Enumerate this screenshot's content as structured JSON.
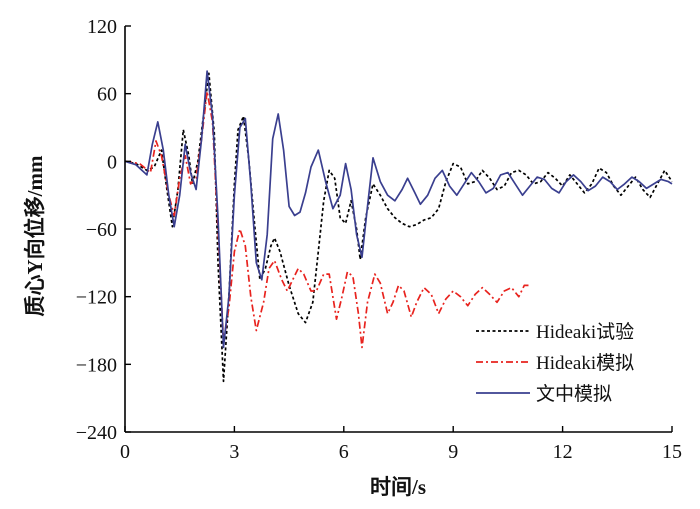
{
  "chart_data": {
    "type": "line",
    "xlabel": "时间/s",
    "ylabel": "质心Y向位移/mm",
    "xlim": [
      0,
      15
    ],
    "ylim": [
      -240,
      120
    ],
    "x_ticks": [
      "0",
      "3",
      "6",
      "9",
      "12",
      "15"
    ],
    "y_ticks": [
      "120",
      "60",
      "0",
      "−60",
      "−120",
      "−180",
      "−240"
    ],
    "grid": false,
    "legend_position": "bottom-right",
    "series": [
      {
        "name": "Hideaki试验",
        "style": "dotted",
        "color": "#000000",
        "points": [
          [
            0,
            0
          ],
          [
            0.3,
            -2
          ],
          [
            0.6,
            -8
          ],
          [
            0.8,
            -5
          ],
          [
            1.0,
            10
          ],
          [
            1.15,
            -25
          ],
          [
            1.3,
            -58
          ],
          [
            1.45,
            -25
          ],
          [
            1.6,
            28
          ],
          [
            1.75,
            5
          ],
          [
            1.85,
            -20
          ],
          [
            2.0,
            0
          ],
          [
            2.15,
            40
          ],
          [
            2.3,
            78
          ],
          [
            2.45,
            25
          ],
          [
            2.55,
            -90
          ],
          [
            2.7,
            -195
          ],
          [
            2.85,
            -120
          ],
          [
            3.0,
            -20
          ],
          [
            3.1,
            28
          ],
          [
            3.25,
            40
          ],
          [
            3.4,
            0
          ],
          [
            3.55,
            -55
          ],
          [
            3.7,
            -105
          ],
          [
            3.85,
            -95
          ],
          [
            4.0,
            -75
          ],
          [
            4.1,
            -68
          ],
          [
            4.25,
            -80
          ],
          [
            4.5,
            -110
          ],
          [
            4.75,
            -135
          ],
          [
            4.95,
            -143
          ],
          [
            5.15,
            -125
          ],
          [
            5.3,
            -80
          ],
          [
            5.45,
            -35
          ],
          [
            5.6,
            -8
          ],
          [
            5.75,
            -15
          ],
          [
            5.9,
            -50
          ],
          [
            6.05,
            -55
          ],
          [
            6.2,
            -35
          ],
          [
            6.35,
            -60
          ],
          [
            6.45,
            -87
          ],
          [
            6.6,
            -50
          ],
          [
            6.8,
            -20
          ],
          [
            7.0,
            -30
          ],
          [
            7.2,
            -42
          ],
          [
            7.4,
            -50
          ],
          [
            7.6,
            -55
          ],
          [
            7.8,
            -58
          ],
          [
            8.0,
            -56
          ],
          [
            8.2,
            -52
          ],
          [
            8.4,
            -50
          ],
          [
            8.6,
            -42
          ],
          [
            8.8,
            -18
          ],
          [
            9.0,
            -2
          ],
          [
            9.2,
            -5
          ],
          [
            9.4,
            -20
          ],
          [
            9.6,
            -18
          ],
          [
            9.8,
            -8
          ],
          [
            10.0,
            -15
          ],
          [
            10.2,
            -25
          ],
          [
            10.4,
            -22
          ],
          [
            10.6,
            -10
          ],
          [
            10.8,
            -8
          ],
          [
            11.0,
            -12
          ],
          [
            11.2,
            -20
          ],
          [
            11.4,
            -18
          ],
          [
            11.6,
            -10
          ],
          [
            11.8,
            -15
          ],
          [
            12.0,
            -22
          ],
          [
            12.2,
            -12
          ],
          [
            12.4,
            -20
          ],
          [
            12.6,
            -28
          ],
          [
            12.8,
            -20
          ],
          [
            13.0,
            -6
          ],
          [
            13.2,
            -10
          ],
          [
            13.4,
            -22
          ],
          [
            13.6,
            -30
          ],
          [
            13.8,
            -22
          ],
          [
            14.0,
            -14
          ],
          [
            14.2,
            -25
          ],
          [
            14.4,
            -32
          ],
          [
            14.6,
            -20
          ],
          [
            14.8,
            -8
          ],
          [
            15.0,
            -18
          ]
        ]
      },
      {
        "name": "Hideaki模拟",
        "style": "dash-dot",
        "color": "#e8231e",
        "points": [
          [
            0,
            0
          ],
          [
            0.4,
            -2
          ],
          [
            0.7,
            -10
          ],
          [
            0.85,
            18
          ],
          [
            1.0,
            5
          ],
          [
            1.2,
            -30
          ],
          [
            1.35,
            -48
          ],
          [
            1.5,
            -15
          ],
          [
            1.65,
            5
          ],
          [
            1.8,
            -20
          ],
          [
            1.95,
            -15
          ],
          [
            2.1,
            20
          ],
          [
            2.25,
            62
          ],
          [
            2.4,
            35
          ],
          [
            2.55,
            -60
          ],
          [
            2.7,
            -160
          ],
          [
            2.85,
            -130
          ],
          [
            3.0,
            -80
          ],
          [
            3.15,
            -60
          ],
          [
            3.3,
            -75
          ],
          [
            3.45,
            -120
          ],
          [
            3.6,
            -150
          ],
          [
            3.8,
            -125
          ],
          [
            3.95,
            -95
          ],
          [
            4.1,
            -88
          ],
          [
            4.3,
            -105
          ],
          [
            4.45,
            -115
          ],
          [
            4.6,
            -105
          ],
          [
            4.75,
            -95
          ],
          [
            4.9,
            -100
          ],
          [
            5.1,
            -115
          ],
          [
            5.25,
            -115
          ],
          [
            5.45,
            -100
          ],
          [
            5.6,
            -100
          ],
          [
            5.8,
            -140
          ],
          [
            5.95,
            -120
          ],
          [
            6.1,
            -98
          ],
          [
            6.25,
            -102
          ],
          [
            6.4,
            -135
          ],
          [
            6.5,
            -165
          ],
          [
            6.65,
            -125
          ],
          [
            6.85,
            -100
          ],
          [
            7.0,
            -108
          ],
          [
            7.2,
            -135
          ],
          [
            7.35,
            -125
          ],
          [
            7.5,
            -110
          ],
          [
            7.65,
            -115
          ],
          [
            7.85,
            -138
          ],
          [
            8.0,
            -125
          ],
          [
            8.2,
            -112
          ],
          [
            8.4,
            -118
          ],
          [
            8.6,
            -135
          ],
          [
            8.8,
            -122
          ],
          [
            9.0,
            -115
          ],
          [
            9.2,
            -120
          ],
          [
            9.4,
            -128
          ],
          [
            9.6,
            -118
          ],
          [
            9.8,
            -112
          ],
          [
            10.0,
            -118
          ],
          [
            10.2,
            -125
          ],
          [
            10.4,
            -115
          ],
          [
            10.6,
            -112
          ],
          [
            10.8,
            -120
          ],
          [
            10.95,
            -110
          ],
          [
            11.1,
            -110
          ]
        ]
      },
      {
        "name": "文中模拟",
        "style": "solid",
        "color": "#3a3f8f",
        "points": [
          [
            0,
            0
          ],
          [
            0.3,
            -3
          ],
          [
            0.6,
            -12
          ],
          [
            0.75,
            15
          ],
          [
            0.9,
            35
          ],
          [
            1.05,
            10
          ],
          [
            1.2,
            -30
          ],
          [
            1.35,
            -58
          ],
          [
            1.5,
            -30
          ],
          [
            1.65,
            15
          ],
          [
            1.8,
            -10
          ],
          [
            1.95,
            -25
          ],
          [
            2.1,
            20
          ],
          [
            2.25,
            80
          ],
          [
            2.4,
            40
          ],
          [
            2.55,
            -50
          ],
          [
            2.7,
            -165
          ],
          [
            2.85,
            -120
          ],
          [
            3.0,
            -30
          ],
          [
            3.15,
            30
          ],
          [
            3.3,
            38
          ],
          [
            3.45,
            -20
          ],
          [
            3.6,
            -90
          ],
          [
            3.75,
            -105
          ],
          [
            3.9,
            -65
          ],
          [
            4.05,
            20
          ],
          [
            4.2,
            42
          ],
          [
            4.35,
            10
          ],
          [
            4.5,
            -40
          ],
          [
            4.65,
            -48
          ],
          [
            4.8,
            -45
          ],
          [
            4.95,
            -28
          ],
          [
            5.1,
            -5
          ],
          [
            5.3,
            10
          ],
          [
            5.5,
            -18
          ],
          [
            5.7,
            -42
          ],
          [
            5.9,
            -30
          ],
          [
            6.05,
            -2
          ],
          [
            6.2,
            -25
          ],
          [
            6.35,
            -65
          ],
          [
            6.5,
            -85
          ],
          [
            6.65,
            -40
          ],
          [
            6.8,
            3
          ],
          [
            7.0,
            -18
          ],
          [
            7.2,
            -30
          ],
          [
            7.4,
            -35
          ],
          [
            7.6,
            -25
          ],
          [
            7.75,
            -15
          ],
          [
            7.95,
            -28
          ],
          [
            8.1,
            -38
          ],
          [
            8.3,
            -30
          ],
          [
            8.5,
            -15
          ],
          [
            8.7,
            -8
          ],
          [
            8.9,
            -22
          ],
          [
            9.1,
            -30
          ],
          [
            9.3,
            -20
          ],
          [
            9.5,
            -10
          ],
          [
            9.7,
            -18
          ],
          [
            9.9,
            -28
          ],
          [
            10.1,
            -24
          ],
          [
            10.3,
            -12
          ],
          [
            10.5,
            -10
          ],
          [
            10.7,
            -20
          ],
          [
            10.9,
            -30
          ],
          [
            11.1,
            -22
          ],
          [
            11.3,
            -14
          ],
          [
            11.5,
            -16
          ],
          [
            11.7,
            -24
          ],
          [
            11.9,
            -28
          ],
          [
            12.1,
            -18
          ],
          [
            12.3,
            -12
          ],
          [
            12.5,
            -18
          ],
          [
            12.7,
            -26
          ],
          [
            12.9,
            -22
          ],
          [
            13.1,
            -14
          ],
          [
            13.3,
            -18
          ],
          [
            13.5,
            -25
          ],
          [
            13.7,
            -20
          ],
          [
            13.9,
            -14
          ],
          [
            14.1,
            -18
          ],
          [
            14.3,
            -24
          ],
          [
            14.5,
            -20
          ],
          [
            14.7,
            -16
          ],
          [
            14.9,
            -18
          ],
          [
            15.0,
            -20
          ]
        ]
      }
    ]
  }
}
